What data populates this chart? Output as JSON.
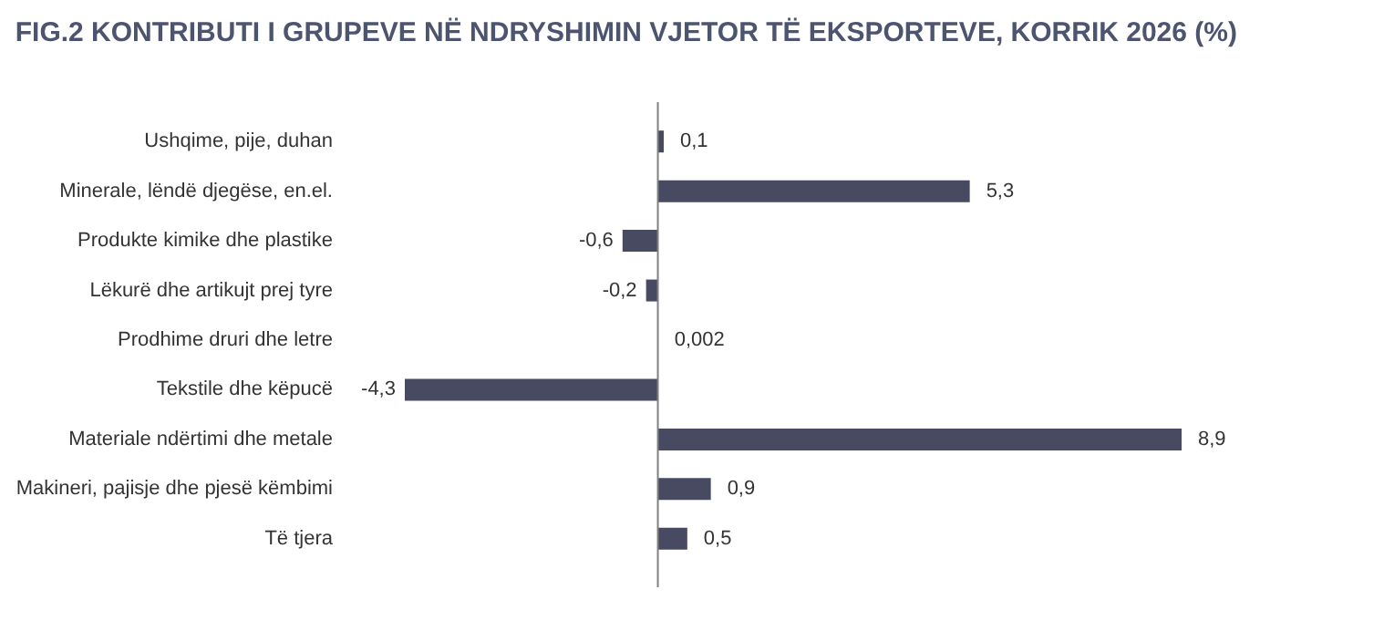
{
  "chart_data": {
    "type": "bar",
    "orientation": "horizontal",
    "title": "FIG.2 KONTRIBUTI I GRUPEVE NË NDRYSHIMIN VJETOR TË EKSPORTEVE, KORRIK 2026 (%)",
    "categories": [
      "Ushqime, pije, duhan",
      "Minerale, lëndë djegëse, en.el.",
      "Produkte kimike dhe plastike",
      "Lëkurë dhe artikujt prej tyre",
      "Prodhime druri dhe letre",
      "Tekstile dhe këpucë",
      "Materiale ndërtimi dhe metale",
      "Makineri, pajisje dhe pjesë këmbimi",
      "Të tjera"
    ],
    "values": [
      0.1,
      5.3,
      -0.6,
      -0.2,
      0.002,
      -4.3,
      8.9,
      0.9,
      0.5
    ],
    "value_labels": [
      "0,1",
      "5,3",
      "-0,6",
      "-0,2",
      "0,002",
      "-4,3",
      "8,9",
      "0,9",
      "0,5"
    ],
    "color": "#474a61"
  }
}
